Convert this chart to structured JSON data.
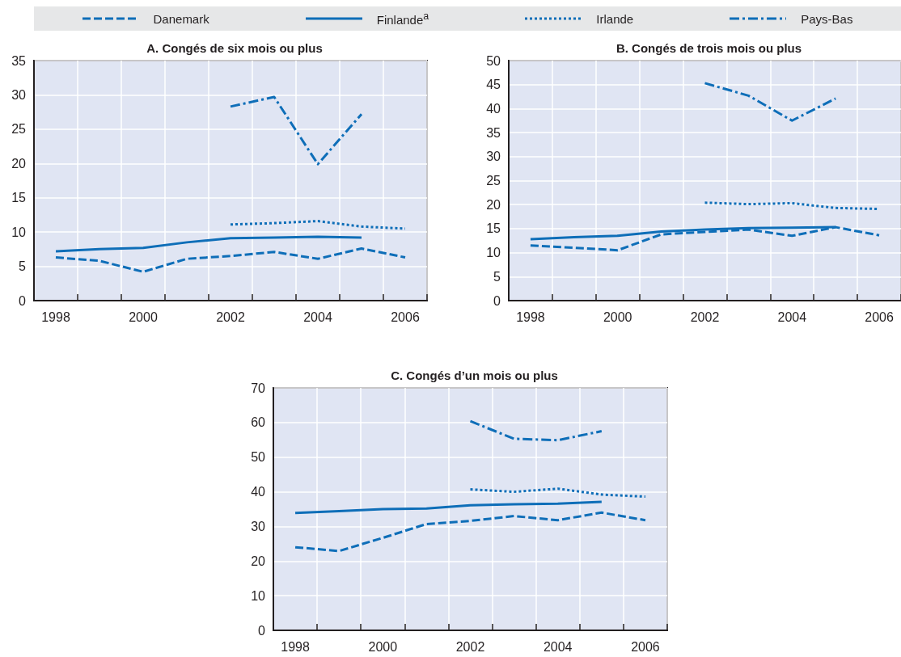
{
  "chart_data": [
    {
      "type": "line",
      "title": "A. Congés de six mois ou plus",
      "categories": [
        "1998",
        null,
        "2000",
        null,
        "2002",
        null,
        "2004",
        null,
        "2006"
      ],
      "ylim": [
        0,
        35
      ],
      "yticks": [
        0,
        5,
        10,
        15,
        20,
        25,
        30,
        35
      ],
      "grid": true,
      "legend": "top",
      "marker": "none",
      "series": [
        {
          "name": "Danemark",
          "color": "#0e6eb8",
          "line_style": "dashed",
          "values": [
            6.3,
            5.8,
            4.2,
            6.1,
            6.5,
            7.1,
            6.1,
            7.6,
            6.3
          ]
        },
        {
          "name": "Finlande$^{a}$",
          "color": "#0e6eb8",
          "line_style": "solid",
          "values": [
            7.2,
            7.5,
            7.7,
            8.5,
            9.1,
            9.2,
            9.3,
            9.2,
            null
          ]
        },
        {
          "name": "Irlande",
          "color": "#0e6eb8",
          "line_style": "dotted",
          "values": [
            null,
            null,
            null,
            null,
            11.1,
            11.3,
            11.6,
            10.8,
            10.5
          ]
        },
        {
          "name": "Pays-Bas",
          "color": "#0e6eb8",
          "line_style": "dashdot",
          "values": [
            null,
            null,
            null,
            null,
            28.3,
            29.7,
            19.9,
            27.2,
            null
          ]
        }
      ]
    },
    {
      "type": "line",
      "title": "B. Congés de trois mois ou plus",
      "categories": [
        "1998",
        null,
        "2000",
        null,
        "2002",
        null,
        "2004",
        null,
        "2006"
      ],
      "ylim": [
        0,
        50
      ],
      "yticks": [
        0,
        5,
        10,
        15,
        20,
        25,
        30,
        35,
        40,
        45,
        50
      ],
      "grid": true,
      "marker": "none",
      "series": [
        {
          "color": "#0e6eb8",
          "line_style": "dashed",
          "values": [
            11.5,
            11,
            10.5,
            13.8,
            14.3,
            14.8,
            13.5,
            15.3,
            13.6
          ]
        },
        {
          "color": "#0e6eb8",
          "line_style": "solid",
          "values": [
            12.8,
            13.2,
            13.5,
            14.4,
            14.8,
            15.1,
            15.2,
            15.3,
            null
          ]
        },
        {
          "color": "#0e6eb8",
          "line_style": "dotted",
          "values": [
            null,
            null,
            null,
            null,
            20.4,
            20.1,
            20.3,
            19.3,
            19.1
          ]
        },
        {
          "color": "#0e6eb8",
          "line_style": "dashdot",
          "values": [
            null,
            null,
            null,
            null,
            45.3,
            42.7,
            37.5,
            42.1,
            null
          ]
        }
      ]
    },
    {
      "type": "line",
      "title": "C. Congés d’un mois ou plus",
      "categories": [
        "1998",
        null,
        "2000",
        null,
        "2002",
        null,
        "2004",
        null,
        "2006"
      ],
      "ylim": [
        0,
        70
      ],
      "yticks": [
        0,
        10,
        20,
        30,
        40,
        50,
        60,
        70
      ],
      "grid": true,
      "marker": "none",
      "series": [
        {
          "color": "#0e6eb8",
          "line_style": "dashed",
          "values": [
            24.0,
            22.9,
            26.7,
            30.7,
            31.6,
            33.0,
            31.8,
            34.0,
            31.8
          ]
        },
        {
          "color": "#0e6eb8",
          "line_style": "solid",
          "values": [
            33.9,
            34.4,
            35.0,
            35.2,
            36.1,
            36.4,
            36.6,
            37.1,
            null
          ]
        },
        {
          "color": "#0e6eb8",
          "line_style": "dotted",
          "values": [
            null,
            null,
            null,
            null,
            40.7,
            40.0,
            40.9,
            39.2,
            38.6
          ]
        },
        {
          "color": "#0e6eb8",
          "line_style": "dashdot",
          "values": [
            null,
            null,
            null,
            null,
            60.4,
            55.3,
            54.9,
            57.5,
            null
          ]
        }
      ]
    }
  ]
}
